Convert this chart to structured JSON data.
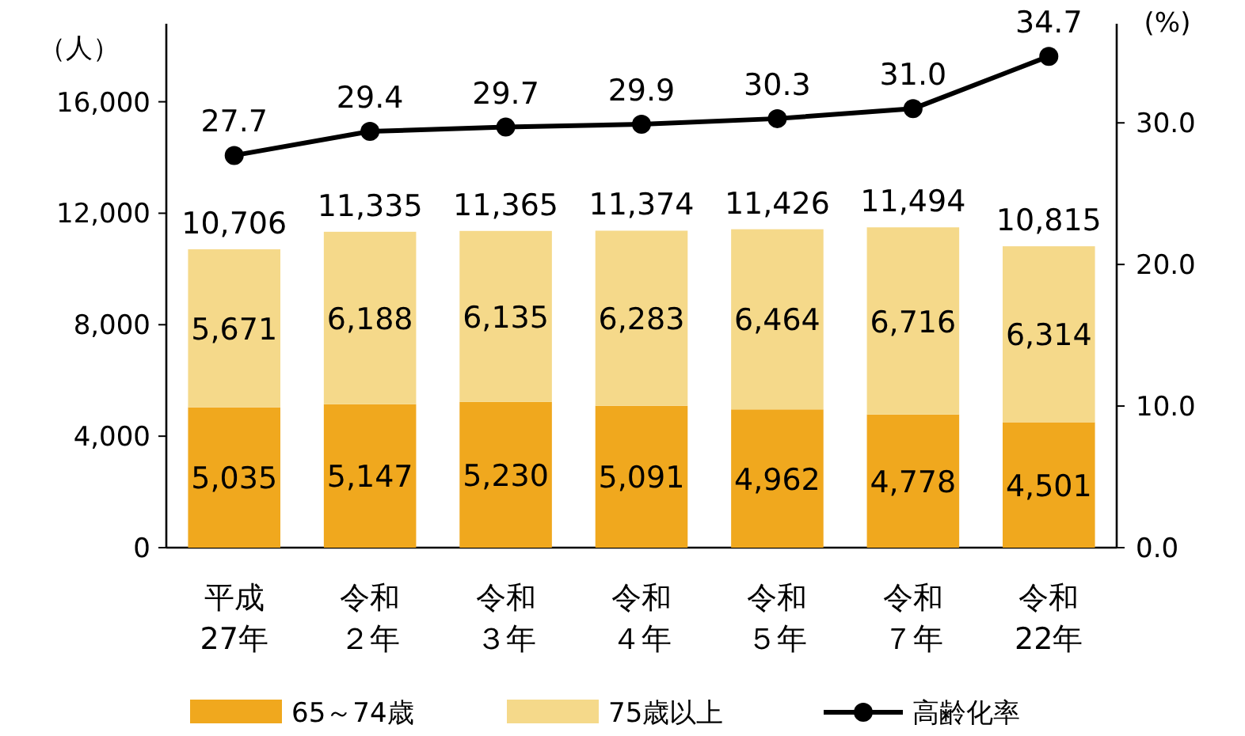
{
  "chart_data": {
    "type": "bar",
    "stacked": true,
    "categories": [
      "平成27年",
      "令和２年",
      "令和３年",
      "令和４年",
      "令和５年",
      "令和７年",
      "令和22年"
    ],
    "ylabel": "（人）",
    "y2label": "(%)",
    "ylim": [
      0,
      18800
    ],
    "yticks": [
      {
        "value": 0,
        "label": "0"
      },
      {
        "value": 4000,
        "label": "4,000"
      },
      {
        "value": 8000,
        "label": "8,000"
      },
      {
        "value": 12000,
        "label": "12,000"
      },
      {
        "value": 16000,
        "label": "16,000"
      }
    ],
    "y2lim": [
      0,
      37
    ],
    "y2ticks": [
      {
        "value": 0,
        "label": "0.0"
      },
      {
        "value": 10,
        "label": "10.0"
      },
      {
        "value": 20,
        "label": "20.0"
      },
      {
        "value": 30,
        "label": "30.0"
      }
    ],
    "series": [
      {
        "name": "65～74歳",
        "color": "#f0a81e",
        "values": [
          5035,
          5147,
          5230,
          5091,
          4962,
          4778,
          4501
        ],
        "value_labels": [
          "5,035",
          "5,147",
          "5,230",
          "5,091",
          "4,962",
          "4,778",
          "4,501"
        ]
      },
      {
        "name": "75歳以上",
        "color": "#f5d98a",
        "values": [
          5671,
          6188,
          6135,
          6283,
          6464,
          6716,
          6314
        ],
        "value_labels": [
          "5,671",
          "6,188",
          "6,135",
          "6,283",
          "6,464",
          "6,716",
          "6,314"
        ]
      },
      {
        "name": "高齢化率",
        "type": "line",
        "axis": "y2",
        "color": "#000000",
        "marker": "circle",
        "values": [
          27.7,
          29.4,
          29.7,
          29.9,
          30.3,
          31.0,
          34.7
        ],
        "value_labels": [
          "27.7",
          "29.4",
          "29.7",
          "29.9",
          "30.3",
          "31.0",
          "34.7"
        ]
      }
    ],
    "totals": [
      "10,706",
      "11,335",
      "11,365",
      "11,374",
      "11,426",
      "11,494",
      "10,815"
    ],
    "grid": false,
    "legend": "bottom"
  }
}
